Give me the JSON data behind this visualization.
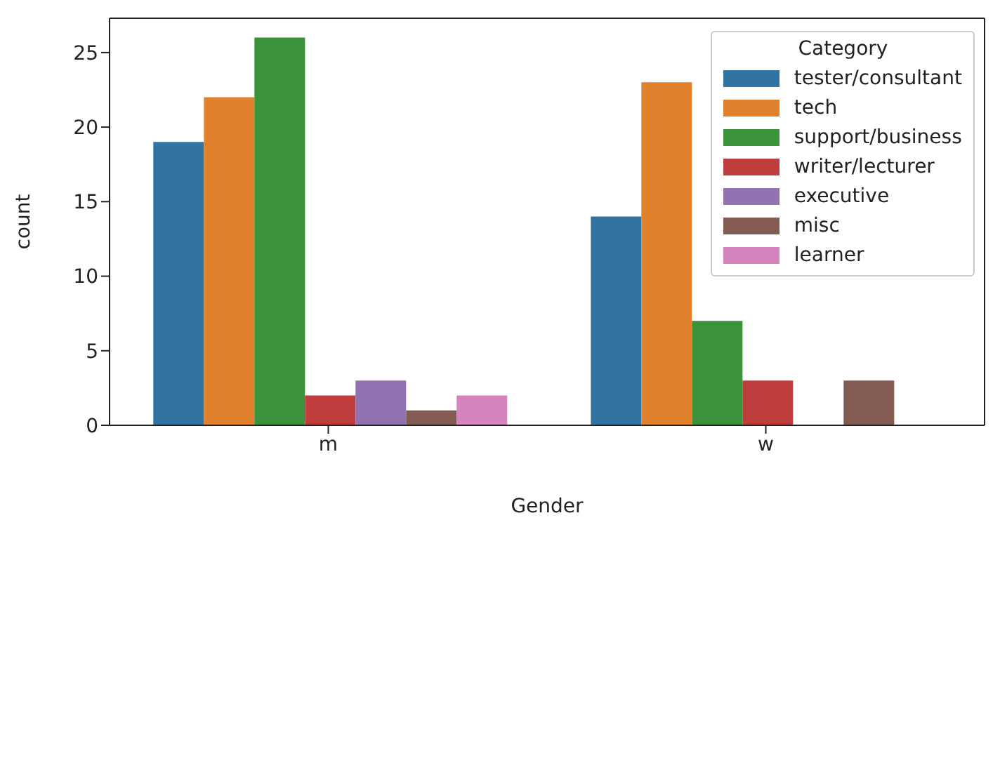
{
  "chart_data": {
    "type": "bar",
    "xlabel": "Gender",
    "ylabel": "count",
    "legend_title": "Category",
    "categories": [
      "m",
      "w"
    ],
    "series": [
      {
        "name": "tester/consultant",
        "color": "#3274a1",
        "values": [
          19,
          14
        ]
      },
      {
        "name": "tech",
        "color": "#e1812c",
        "values": [
          22,
          23
        ]
      },
      {
        "name": "support/business",
        "color": "#3a923a",
        "values": [
          26,
          7
        ]
      },
      {
        "name": "writer/lecturer",
        "color": "#c03d3e",
        "values": [
          2,
          3
        ]
      },
      {
        "name": "executive",
        "color": "#9372b2",
        "values": [
          3,
          null
        ]
      },
      {
        "name": "misc",
        "color": "#845b53",
        "values": [
          1,
          3
        ]
      },
      {
        "name": "learner",
        "color": "#d684bd",
        "values": [
          2,
          null
        ]
      }
    ],
    "ylim": [
      0,
      27.3
    ],
    "yticks": [
      0,
      5,
      10,
      15,
      20,
      25
    ],
    "grid": false,
    "legend": "top right"
  }
}
